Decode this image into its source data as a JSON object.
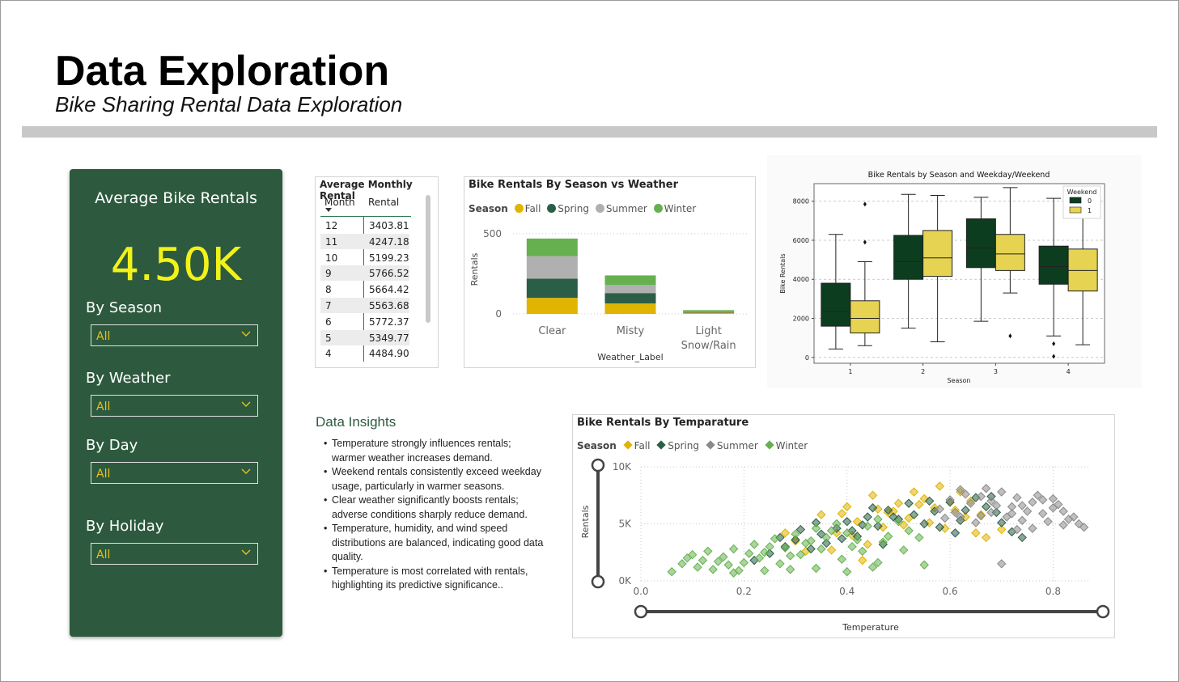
{
  "header": {
    "title": "Data Exploration",
    "subtitle": "Bike Sharing Rental Data Exploration"
  },
  "kpi": {
    "label": "Average Bike Rentals",
    "value": "4.50K"
  },
  "filters": [
    {
      "label": "By Season",
      "value": "All"
    },
    {
      "label": "By Weather",
      "value": "All"
    },
    {
      "label": "By Day",
      "value": "All"
    },
    {
      "label": "By Holiday",
      "value": "All"
    }
  ],
  "monthly_table": {
    "title": "Average Monthly Rental",
    "columns": [
      "Month",
      "Rental"
    ],
    "rows": [
      [
        "12",
        "3403.81"
      ],
      [
        "11",
        "4247.18"
      ],
      [
        "10",
        "5199.23"
      ],
      [
        "9",
        "5766.52"
      ],
      [
        "8",
        "5664.42"
      ],
      [
        "7",
        "5563.68"
      ],
      [
        "6",
        "5772.37"
      ],
      [
        "5",
        "5349.77"
      ],
      [
        "4",
        "4484.90"
      ]
    ]
  },
  "insights": {
    "title": "Data Insights",
    "items": [
      "Temperature strongly influences rentals; warmer weather increases demand.",
      "Weekend rentals consistently exceed weekday usage, particularly in warmer seasons.",
      "Clear weather significantly boosts rentals; adverse conditions sharply reduce demand.",
      "Temperature, humidity, and wind speed distributions are balanced, indicating good data quality.",
      "Temperature is most correlated with rentals, highlighting its predictive significance.."
    ]
  },
  "colors": {
    "fall": "#e0b400",
    "spring": "#2b5e46",
    "summer": "#b0b0b0",
    "winter": "#66b050",
    "scatter_summer": "#8a8a8a",
    "weekend0": "#0b3d1e",
    "weekend1": "#e6d352",
    "panel": "#2d5a3e",
    "kpi": "#f2f21a"
  },
  "icons": {
    "dropdown": "chevron-down-icon",
    "sort": "sort-descending-icon",
    "legend_marker": "circle-icon",
    "scatter_legend_marker": "diamond-icon"
  },
  "chart_data": [
    {
      "type": "bar",
      "stacked": true,
      "title": "Bike Rentals By Season vs Weather",
      "legend_title": "Season",
      "xlabel": "Weather_Label",
      "ylabel": "Rentals",
      "yticks": [
        "500",
        "0"
      ],
      "ylim": [
        0,
        560
      ],
      "categories": [
        "Clear",
        "Misty",
        "Light Snow/Rain"
      ],
      "series": [
        {
          "name": "Fall",
          "values": [
            100,
            65,
            8
          ]
        },
        {
          "name": "Spring",
          "values": [
            120,
            65,
            6
          ]
        },
        {
          "name": "Summer",
          "values": [
            140,
            50,
            5
          ]
        },
        {
          "name": "Winter",
          "values": [
            110,
            60,
            5
          ]
        }
      ]
    },
    {
      "type": "box",
      "title": "Bike Rentals by Season and Weekday/Weekend",
      "xlabel": "Season",
      "ylabel": "Bike Rentals",
      "legend_title": "Weekend",
      "legend_position": "top-right",
      "grid": true,
      "ylim": [
        -300,
        8900
      ],
      "yticks": [
        0,
        2000,
        4000,
        6000,
        8000
      ],
      "categories": [
        "1",
        "2",
        "3",
        "4"
      ],
      "series": [
        {
          "name": "0",
          "boxes": [
            {
              "whislo": 430,
              "q1": 1600,
              "med": 2350,
              "q3": 3800,
              "whishi": 6300,
              "fliers": []
            },
            {
              "whislo": 1500,
              "q1": 4000,
              "med": 4900,
              "q3": 6250,
              "whishi": 8350,
              "fliers": []
            },
            {
              "whislo": 1850,
              "q1": 4600,
              "med": 5600,
              "q3": 7100,
              "whishi": 8200,
              "fliers": []
            },
            {
              "whislo": 1100,
              "q1": 3750,
              "med": 4650,
              "q3": 5700,
              "whishi": 8150,
              "fliers": [
                700,
                50
              ]
            }
          ]
        },
        {
          "name": "1",
          "boxes": [
            {
              "whislo": 600,
              "q1": 1250,
              "med": 2000,
              "q3": 2900,
              "whishi": 4900,
              "fliers": [
                5900,
                7850
              ]
            },
            {
              "whislo": 800,
              "q1": 4150,
              "med": 5100,
              "q3": 6500,
              "whishi": 8300,
              "fliers": []
            },
            {
              "whislo": 3300,
              "q1": 4450,
              "med": 5300,
              "q3": 6300,
              "whishi": 8700,
              "fliers": [
                1100
              ]
            },
            {
              "whislo": 650,
              "q1": 3400,
              "med": 4450,
              "q3": 5550,
              "whishi": 7900,
              "fliers": []
            }
          ]
        }
      ]
    },
    {
      "type": "scatter",
      "title": "Bike Rentals By Temparature",
      "legend_title": "Season",
      "xlabel": "Temperature",
      "ylabel": "Rentals",
      "xlim": [
        0.0,
        0.87
      ],
      "ylim": [
        0,
        10000
      ],
      "xticks": [
        "0.0",
        "0.2",
        "0.4",
        "0.6",
        "0.8"
      ],
      "yticks": [
        "10K",
        "5K",
        "0K"
      ],
      "grid": true,
      "series": [
        {
          "name": "Fall",
          "points": [
            [
              0.35,
              5800
            ],
            [
              0.38,
              4200
            ],
            [
              0.4,
              6500
            ],
            [
              0.42,
              5200
            ],
            [
              0.45,
              7500
            ],
            [
              0.48,
              6000
            ],
            [
              0.5,
              6800
            ],
            [
              0.52,
              5500
            ],
            [
              0.55,
              7200
            ],
            [
              0.57,
              6400
            ],
            [
              0.58,
              8300
            ],
            [
              0.6,
              6900
            ],
            [
              0.62,
              7800
            ],
            [
              0.63,
              5600
            ],
            [
              0.65,
              4200
            ],
            [
              0.67,
              3800
            ],
            [
              0.7,
              4500
            ],
            [
              0.44,
              3200
            ],
            [
              0.47,
              4700
            ],
            [
              0.53,
              7800
            ],
            [
              0.56,
              5100
            ],
            [
              0.59,
              4600
            ],
            [
              0.61,
              6200
            ],
            [
              0.64,
              7000
            ],
            [
              0.41,
              4000
            ],
            [
              0.39,
              5900
            ],
            [
              0.37,
              2700
            ],
            [
              0.46,
              6300
            ],
            [
              0.51,
              4900
            ],
            [
              0.54,
              6700
            ],
            [
              0.66,
              5800
            ],
            [
              0.28,
              4200
            ],
            [
              0.3,
              3500
            ],
            [
              0.32,
              2600
            ],
            [
              0.43,
              1800
            ],
            [
              0.49,
              6100
            ]
          ]
        },
        {
          "name": "Spring",
          "points": [
            [
              0.25,
              2400
            ],
            [
              0.28,
              3000
            ],
            [
              0.3,
              3600
            ],
            [
              0.33,
              2800
            ],
            [
              0.35,
              4100
            ],
            [
              0.38,
              4600
            ],
            [
              0.4,
              5200
            ],
            [
              0.42,
              3900
            ],
            [
              0.44,
              5600
            ],
            [
              0.46,
              4800
            ],
            [
              0.48,
              6200
            ],
            [
              0.5,
              5400
            ],
            [
              0.52,
              6800
            ],
            [
              0.55,
              5000
            ],
            [
              0.57,
              6100
            ],
            [
              0.6,
              6900
            ],
            [
              0.62,
              5300
            ],
            [
              0.65,
              7300
            ],
            [
              0.67,
              6500
            ],
            [
              0.7,
              5100
            ],
            [
              0.72,
              4300
            ],
            [
              0.74,
              3800
            ],
            [
              0.36,
              3300
            ],
            [
              0.41,
              4400
            ],
            [
              0.47,
              3200
            ],
            [
              0.53,
              5800
            ],
            [
              0.58,
              4700
            ],
            [
              0.63,
              6200
            ],
            [
              0.68,
              7400
            ],
            [
              0.45,
              6400
            ],
            [
              0.27,
              3800
            ],
            [
              0.31,
              4500
            ],
            [
              0.34,
              5100
            ],
            [
              0.39,
              3700
            ],
            [
              0.56,
              7000
            ],
            [
              0.61,
              4200
            ],
            [
              0.69,
              6000
            ],
            [
              0.22,
              1800
            ],
            [
              0.43,
              4900
            ],
            [
              0.49,
              5600
            ]
          ]
        },
        {
          "name": "Summer",
          "points": [
            [
              0.58,
              6300
            ],
            [
              0.6,
              7100
            ],
            [
              0.62,
              5600
            ],
            [
              0.64,
              6800
            ],
            [
              0.66,
              7400
            ],
            [
              0.68,
              6000
            ],
            [
              0.7,
              7800
            ],
            [
              0.72,
              6500
            ],
            [
              0.74,
              5300
            ],
            [
              0.76,
              6900
            ],
            [
              0.78,
              5900
            ],
            [
              0.8,
              6400
            ],
            [
              0.82,
              4900
            ],
            [
              0.84,
              5600
            ],
            [
              0.86,
              4700
            ],
            [
              0.71,
              5600
            ],
            [
              0.73,
              7300
            ],
            [
              0.75,
              6100
            ],
            [
              0.77,
              7500
            ],
            [
              0.79,
              5200
            ],
            [
              0.81,
              6700
            ],
            [
              0.83,
              5400
            ],
            [
              0.69,
              6600
            ],
            [
              0.67,
              8100
            ],
            [
              0.65,
              5100
            ],
            [
              0.63,
              7600
            ],
            [
              0.61,
              6000
            ],
            [
              0.59,
              5500
            ],
            [
              0.85,
              5000
            ],
            [
              0.73,
              4500
            ],
            [
              0.7,
              1500
            ],
            [
              0.78,
              7100
            ],
            [
              0.76,
              4600
            ],
            [
              0.72,
              5900
            ],
            [
              0.8,
              7200
            ],
            [
              0.66,
              5700
            ],
            [
              0.62,
              8000
            ],
            [
              0.74,
              6600
            ],
            [
              0.82,
              6100
            ],
            [
              0.68,
              7000
            ]
          ]
        },
        {
          "name": "Winter",
          "points": [
            [
              0.06,
              800
            ],
            [
              0.08,
              1500
            ],
            [
              0.1,
              2300
            ],
            [
              0.12,
              1800
            ],
            [
              0.14,
              1000
            ],
            [
              0.16,
              2100
            ],
            [
              0.18,
              2800
            ],
            [
              0.2,
              1600
            ],
            [
              0.22,
              3200
            ],
            [
              0.24,
              2500
            ],
            [
              0.26,
              3700
            ],
            [
              0.28,
              2900
            ],
            [
              0.3,
              4100
            ],
            [
              0.32,
              3300
            ],
            [
              0.34,
              4600
            ],
            [
              0.36,
              3800
            ],
            [
              0.38,
              5000
            ],
            [
              0.4,
              4200
            ],
            [
              0.42,
              3600
            ],
            [
              0.44,
              4800
            ],
            [
              0.46,
              5400
            ],
            [
              0.48,
              3900
            ],
            [
              0.5,
              5200
            ],
            [
              0.52,
              4400
            ],
            [
              0.54,
              3800
            ],
            [
              0.11,
              1200
            ],
            [
              0.15,
              1700
            ],
            [
              0.19,
              900
            ],
            [
              0.23,
              2000
            ],
            [
              0.27,
              1500
            ],
            [
              0.31,
              2300
            ],
            [
              0.35,
              2800
            ],
            [
              0.39,
              1900
            ],
            [
              0.43,
              2600
            ],
            [
              0.09,
              2000
            ],
            [
              0.13,
              2600
            ],
            [
              0.17,
              1400
            ],
            [
              0.21,
              2400
            ],
            [
              0.25,
              3000
            ],
            [
              0.29,
              2200
            ],
            [
              0.33,
              3500
            ],
            [
              0.37,
              4400
            ],
            [
              0.41,
              3000
            ],
            [
              0.45,
              1200
            ],
            [
              0.47,
              3400
            ],
            [
              0.51,
              2700
            ],
            [
              0.55,
              1400
            ],
            [
              0.18,
              700
            ],
            [
              0.24,
              900
            ],
            [
              0.29,
              1000
            ],
            [
              0.34,
              1100
            ],
            [
              0.4,
              800
            ],
            [
              0.46,
              1600
            ]
          ]
        }
      ]
    }
  ]
}
